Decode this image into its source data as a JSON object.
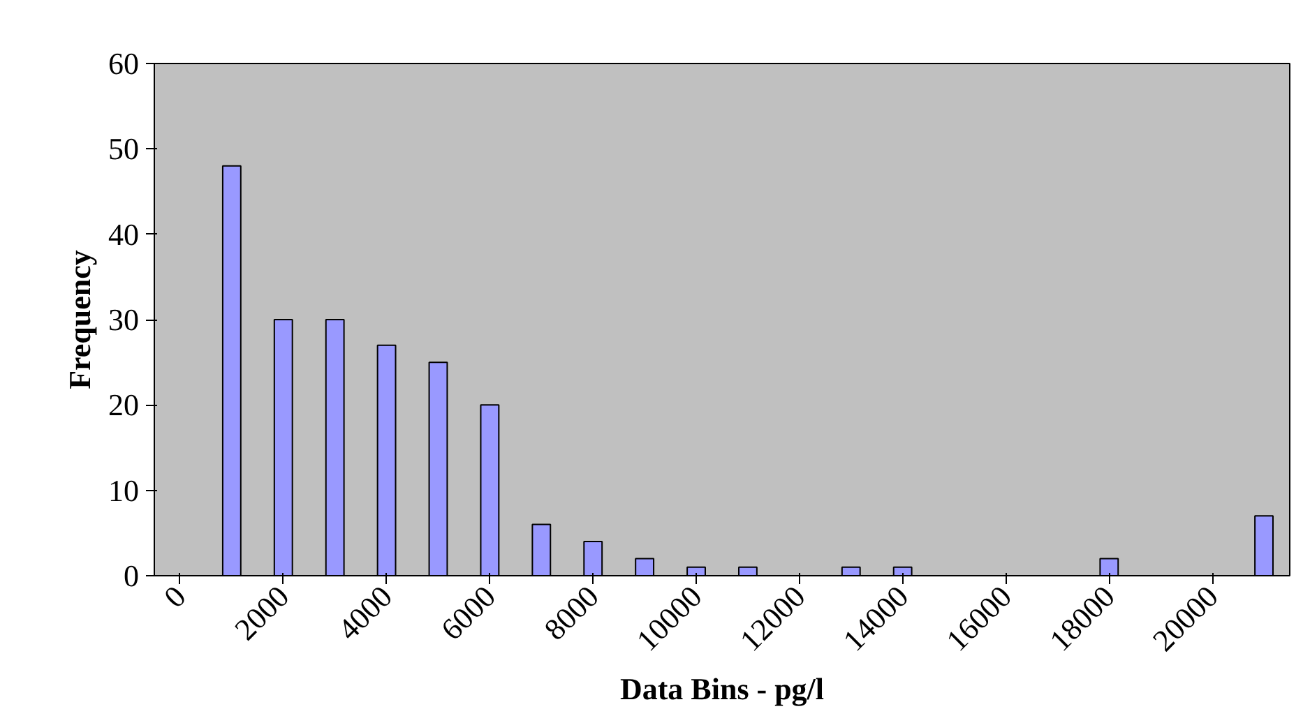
{
  "chart_data": {
    "type": "bar",
    "xlabel": "Data Bins - pg/l",
    "ylabel": "Frequency",
    "categories": [
      "0",
      null,
      "2000",
      null,
      "4000",
      null,
      "6000",
      null,
      "8000",
      null,
      "10000",
      null,
      "12000",
      null,
      "14000",
      null,
      "16000",
      null,
      "18000",
      null,
      "20000",
      null
    ],
    "values": [
      0,
      48,
      30,
      30,
      27,
      25,
      20,
      6,
      4,
      2,
      1,
      1,
      0,
      1,
      1,
      0,
      0,
      0,
      2,
      0,
      0,
      7
    ],
    "color": "#9999ff",
    "ylim": [
      0,
      60
    ],
    "yticks": [
      0,
      10,
      20,
      30,
      40,
      50,
      60
    ],
    "grid": false
  }
}
